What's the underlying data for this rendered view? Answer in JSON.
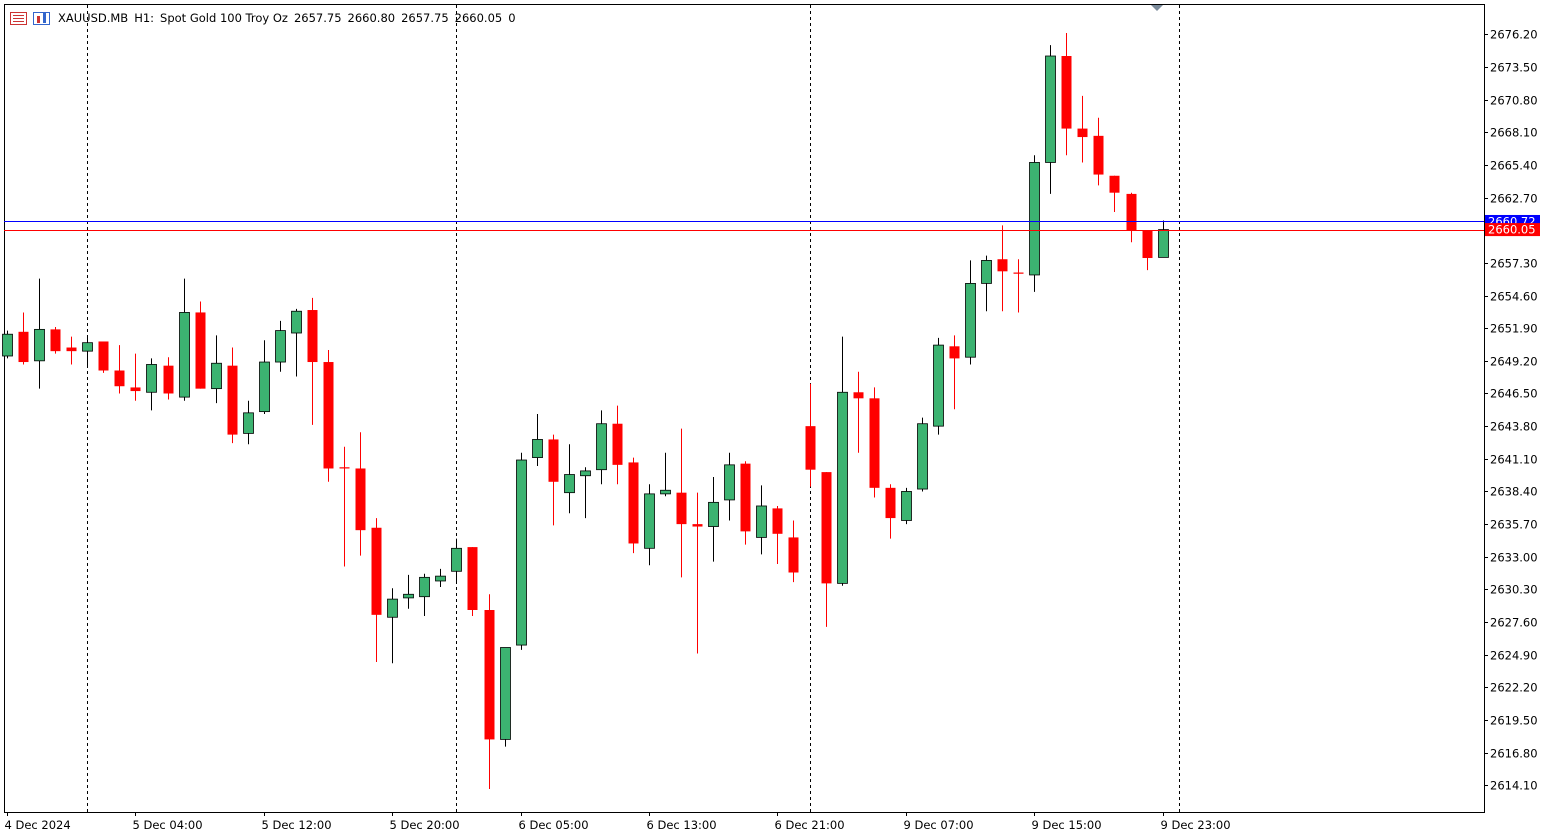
{
  "header": {
    "symbol": "XAUUSD.MB",
    "timeframe": "H1:",
    "description": "Spot Gold 100 Troy Oz",
    "open": "2657.75",
    "high": "2660.80",
    "low": "2657.75",
    "close": "2660.05",
    "volume": "0"
  },
  "colors": {
    "bull": "#3cb371",
    "bear": "#ff0000",
    "bid_line": "#ff0000",
    "ask_line": "#0000ff",
    "ask_label_bg": "#0000ff",
    "bid_label_bg": "#ff0000",
    "separator": "#000000"
  },
  "price_labels": {
    "ask": "2660.72",
    "bid": "2660.05"
  },
  "chart_data": {
    "type": "candlestick",
    "symbol": "XAUUSD.MB",
    "timeframe": "H1",
    "ylim": [
      2611.9,
      2678.7
    ],
    "y_ticks": [
      "2676.20",
      "2673.50",
      "2670.80",
      "2668.10",
      "2665.40",
      "2662.70",
      "2657.30",
      "2654.60",
      "2651.90",
      "2649.20",
      "2646.50",
      "2643.80",
      "2641.10",
      "2638.40",
      "2635.70",
      "2633.00",
      "2630.30",
      "2627.60",
      "2624.90",
      "2622.20",
      "2619.50",
      "2616.80",
      "2614.10"
    ],
    "x_ticks": [
      {
        "label": "4 Dec 2024",
        "index": 0
      },
      {
        "label": "5 Dec 04:00",
        "index": 8
      },
      {
        "label": "5 Dec 12:00",
        "index": 16
      },
      {
        "label": "5 Dec 20:00",
        "index": 24
      },
      {
        "label": "6 Dec 05:00",
        "index": 32
      },
      {
        "label": "6 Dec 13:00",
        "index": 40
      },
      {
        "label": "6 Dec 21:00",
        "index": 48
      },
      {
        "label": "9 Dec 07:00",
        "index": 56
      },
      {
        "label": "9 Dec 15:00",
        "index": 64
      },
      {
        "label": "9 Dec 23:00",
        "index": 72
      }
    ],
    "separators": [
      5,
      28,
      50,
      73
    ],
    "candles": [
      {
        "o": 2649.6,
        "h": 2651.7,
        "l": 2649.4,
        "c": 2651.4
      },
      {
        "o": 2651.6,
        "h": 2653.2,
        "l": 2648.9,
        "c": 2649.1
      },
      {
        "o": 2649.2,
        "h": 2656.0,
        "l": 2646.9,
        "c": 2651.8
      },
      {
        "o": 2651.8,
        "h": 2652.0,
        "l": 2649.8,
        "c": 2650.0
      },
      {
        "o": 2650.3,
        "h": 2651.2,
        "l": 2648.9,
        "c": 2650.0
      },
      {
        "o": 2650.0,
        "h": 2651.3,
        "l": 2648.8,
        "c": 2650.7
      },
      {
        "o": 2650.8,
        "h": 2650.8,
        "l": 2648.2,
        "c": 2648.4
      },
      {
        "o": 2648.4,
        "h": 2650.5,
        "l": 2646.5,
        "c": 2647.1
      },
      {
        "o": 2647.0,
        "h": 2649.8,
        "l": 2645.9,
        "c": 2646.7
      },
      {
        "o": 2646.6,
        "h": 2649.4,
        "l": 2645.1,
        "c": 2648.9
      },
      {
        "o": 2648.8,
        "h": 2649.5,
        "l": 2646.0,
        "c": 2646.5
      },
      {
        "o": 2646.2,
        "h": 2656.0,
        "l": 2645.9,
        "c": 2653.2
      },
      {
        "o": 2653.2,
        "h": 2654.1,
        "l": 2646.9,
        "c": 2646.9
      },
      {
        "o": 2646.9,
        "h": 2651.3,
        "l": 2645.7,
        "c": 2649.0
      },
      {
        "o": 2648.8,
        "h": 2650.3,
        "l": 2642.4,
        "c": 2643.1
      },
      {
        "o": 2643.2,
        "h": 2645.9,
        "l": 2642.3,
        "c": 2644.9
      },
      {
        "o": 2645.0,
        "h": 2650.9,
        "l": 2644.8,
        "c": 2649.1
      },
      {
        "o": 2649.1,
        "h": 2652.5,
        "l": 2648.3,
        "c": 2651.7
      },
      {
        "o": 2651.5,
        "h": 2653.5,
        "l": 2647.9,
        "c": 2653.3
      },
      {
        "o": 2653.4,
        "h": 2654.4,
        "l": 2643.9,
        "c": 2649.1
      },
      {
        "o": 2649.1,
        "h": 2650.1,
        "l": 2639.2,
        "c": 2640.3
      },
      {
        "o": 2640.4,
        "h": 2642.1,
        "l": 2632.2,
        "c": 2640.3
      },
      {
        "o": 2640.3,
        "h": 2643.3,
        "l": 2633.1,
        "c": 2635.2
      },
      {
        "o": 2635.4,
        "h": 2636.2,
        "l": 2624.3,
        "c": 2628.2
      },
      {
        "o": 2628.0,
        "h": 2630.4,
        "l": 2624.2,
        "c": 2629.5
      },
      {
        "o": 2629.6,
        "h": 2631.5,
        "l": 2628.7,
        "c": 2629.9
      },
      {
        "o": 2629.7,
        "h": 2631.6,
        "l": 2628.1,
        "c": 2631.3
      },
      {
        "o": 2631.0,
        "h": 2632.0,
        "l": 2630.5,
        "c": 2631.4
      },
      {
        "o": 2631.8,
        "h": 2634.5,
        "l": 2630.9,
        "c": 2633.7
      },
      {
        "o": 2633.8,
        "h": 2633.8,
        "l": 2628.1,
        "c": 2628.6
      },
      {
        "o": 2628.6,
        "h": 2629.9,
        "l": 2613.8,
        "c": 2617.9
      },
      {
        "o": 2617.9,
        "h": 2625.2,
        "l": 2617.3,
        "c": 2625.5
      },
      {
        "o": 2625.7,
        "h": 2641.6,
        "l": 2625.3,
        "c": 2641.0
      },
      {
        "o": 2641.2,
        "h": 2644.8,
        "l": 2640.5,
        "c": 2642.7
      },
      {
        "o": 2642.7,
        "h": 2643.1,
        "l": 2635.6,
        "c": 2639.2
      },
      {
        "o": 2638.3,
        "h": 2642.3,
        "l": 2636.6,
        "c": 2639.8
      },
      {
        "o": 2639.7,
        "h": 2640.4,
        "l": 2636.2,
        "c": 2640.1
      },
      {
        "o": 2640.2,
        "h": 2645.1,
        "l": 2639.0,
        "c": 2644.0
      },
      {
        "o": 2644.0,
        "h": 2645.5,
        "l": 2639.0,
        "c": 2640.6
      },
      {
        "o": 2640.8,
        "h": 2641.2,
        "l": 2633.3,
        "c": 2634.1
      },
      {
        "o": 2633.7,
        "h": 2639.0,
        "l": 2632.3,
        "c": 2638.2
      },
      {
        "o": 2638.2,
        "h": 2641.6,
        "l": 2638.0,
        "c": 2638.5
      },
      {
        "o": 2638.3,
        "h": 2643.6,
        "l": 2631.3,
        "c": 2635.7
      },
      {
        "o": 2635.7,
        "h": 2638.3,
        "l": 2625.0,
        "c": 2635.5
      },
      {
        "o": 2635.5,
        "h": 2639.6,
        "l": 2632.6,
        "c": 2637.5
      },
      {
        "o": 2637.7,
        "h": 2641.6,
        "l": 2636.0,
        "c": 2640.6
      },
      {
        "o": 2640.7,
        "h": 2640.9,
        "l": 2634.0,
        "c": 2635.1
      },
      {
        "o": 2634.6,
        "h": 2638.9,
        "l": 2633.2,
        "c": 2637.2
      },
      {
        "o": 2637.0,
        "h": 2637.2,
        "l": 2632.4,
        "c": 2634.9
      },
      {
        "o": 2634.6,
        "h": 2636.0,
        "l": 2630.9,
        "c": 2631.7
      },
      {
        "o": 2643.8,
        "h": 2647.3,
        "l": 2638.8,
        "c": 2640.2
      },
      {
        "o": 2640.0,
        "h": 2640.0,
        "l": 2627.2,
        "c": 2630.8
      },
      {
        "o": 2630.8,
        "h": 2651.2,
        "l": 2630.6,
        "c": 2646.6
      },
      {
        "o": 2646.6,
        "h": 2648.3,
        "l": 2641.6,
        "c": 2646.1
      },
      {
        "o": 2646.1,
        "h": 2647.0,
        "l": 2637.9,
        "c": 2638.7
      },
      {
        "o": 2638.7,
        "h": 2639.0,
        "l": 2634.5,
        "c": 2636.2
      },
      {
        "o": 2636.0,
        "h": 2638.7,
        "l": 2635.7,
        "c": 2638.4
      },
      {
        "o": 2638.6,
        "h": 2644.5,
        "l": 2638.4,
        "c": 2644.0
      },
      {
        "o": 2643.8,
        "h": 2651.1,
        "l": 2643.1,
        "c": 2650.5
      },
      {
        "o": 2650.4,
        "h": 2651.3,
        "l": 2645.2,
        "c": 2649.4
      },
      {
        "o": 2649.5,
        "h": 2657.5,
        "l": 2648.9,
        "c": 2655.6
      },
      {
        "o": 2655.6,
        "h": 2657.9,
        "l": 2653.3,
        "c": 2657.5
      },
      {
        "o": 2657.6,
        "h": 2660.4,
        "l": 2653.3,
        "c": 2656.6
      },
      {
        "o": 2656.5,
        "h": 2657.6,
        "l": 2653.2,
        "c": 2656.4
      },
      {
        "o": 2656.3,
        "h": 2666.2,
        "l": 2654.9,
        "c": 2665.6
      },
      {
        "o": 2665.6,
        "h": 2675.3,
        "l": 2663.0,
        "c": 2674.4
      },
      {
        "o": 2674.4,
        "h": 2676.3,
        "l": 2666.2,
        "c": 2668.4
      },
      {
        "o": 2668.4,
        "h": 2671.1,
        "l": 2665.6,
        "c": 2667.7
      },
      {
        "o": 2667.8,
        "h": 2669.3,
        "l": 2663.7,
        "c": 2664.6
      },
      {
        "o": 2664.5,
        "h": 2664.5,
        "l": 2661.5,
        "c": 2663.1
      },
      {
        "o": 2663.0,
        "h": 2663.1,
        "l": 2659.0,
        "c": 2660.0
      },
      {
        "o": 2660.0,
        "h": 2660.0,
        "l": 2656.7,
        "c": 2657.7
      },
      {
        "o": 2657.75,
        "h": 2660.8,
        "l": 2657.75,
        "c": 2660.05
      }
    ]
  }
}
